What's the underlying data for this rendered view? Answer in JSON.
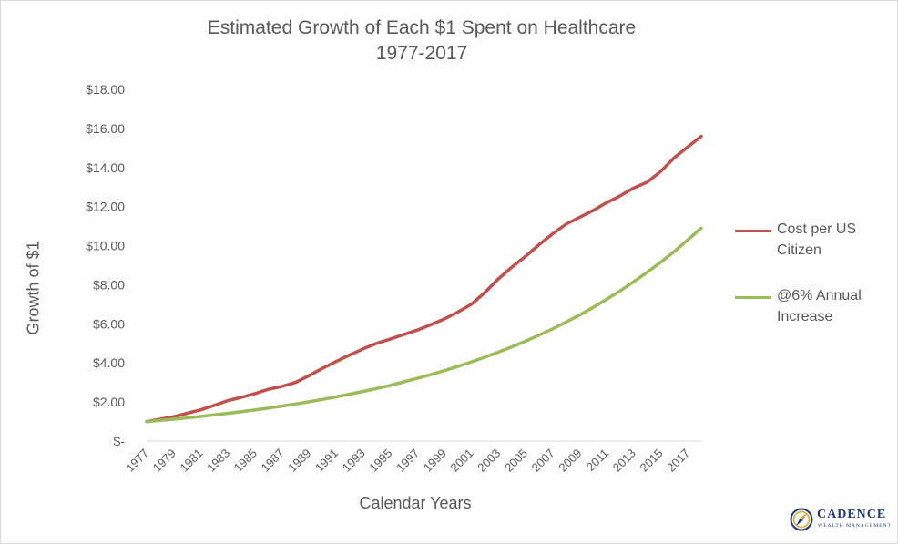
{
  "chart_data": {
    "type": "line",
    "title": "Estimated Growth of Each $1 Spent on Healthcare",
    "subtitle": "1977-2017",
    "xlabel": "Calendar Years",
    "ylabel": "Growth of $1",
    "ylim": [
      0,
      18
    ],
    "ytick_values": [
      0,
      2,
      4,
      6,
      8,
      10,
      12,
      14,
      16,
      18
    ],
    "ytick_labels": [
      "$-",
      "$2.00",
      "$4.00",
      "$6.00",
      "$8.00",
      "$10.00",
      "$12.00",
      "$14.00",
      "$16.00",
      "$18.00"
    ],
    "xtick_labels": [
      "1977",
      "1979",
      "1981",
      "1983",
      "1985",
      "1987",
      "1989",
      "1991",
      "1993",
      "1995",
      "1997",
      "1999",
      "2001",
      "2003",
      "2005",
      "2007",
      "2009",
      "2011",
      "2013",
      "2015",
      "2017"
    ],
    "grid": false,
    "legend_position": "right",
    "x": [
      1977,
      1978,
      1979,
      1980,
      1981,
      1982,
      1983,
      1984,
      1985,
      1986,
      1987,
      1988,
      1989,
      1990,
      1991,
      1992,
      1993,
      1994,
      1995,
      1996,
      1997,
      1998,
      1999,
      2000,
      2001,
      2002,
      2003,
      2004,
      2005,
      2006,
      2007,
      2008,
      2009,
      2010,
      2011,
      2012,
      2013,
      2014,
      2015,
      2016,
      2017,
      2018
    ],
    "series": [
      {
        "name": "Cost per US Citizen",
        "color": "#c0504d",
        "values": [
          1.0,
          1.12,
          1.25,
          1.42,
          1.6,
          1.83,
          2.07,
          2.24,
          2.43,
          2.65,
          2.8,
          3.0,
          3.35,
          3.72,
          4.07,
          4.4,
          4.72,
          5.0,
          5.22,
          5.45,
          5.68,
          5.95,
          6.25,
          6.6,
          7.0,
          7.6,
          8.3,
          8.9,
          9.45,
          10.05,
          10.6,
          11.1,
          11.45,
          11.8,
          12.2,
          12.55,
          12.95,
          13.25,
          13.8,
          14.5,
          15.05,
          15.6
        ]
      },
      {
        "name": "@6% Annual Increase",
        "color": "#9bbb59",
        "values": [
          1.0,
          1.06,
          1.12,
          1.19,
          1.26,
          1.34,
          1.42,
          1.5,
          1.59,
          1.69,
          1.79,
          1.9,
          2.01,
          2.13,
          2.26,
          2.4,
          2.54,
          2.69,
          2.85,
          3.03,
          3.21,
          3.4,
          3.6,
          3.82,
          4.05,
          4.29,
          4.55,
          4.82,
          5.11,
          5.42,
          5.74,
          6.09,
          6.45,
          6.84,
          7.25,
          7.69,
          8.15,
          8.64,
          9.15,
          9.7,
          10.29,
          10.9
        ]
      }
    ]
  },
  "logo": {
    "name": "CADENCE",
    "subtitle": "WEALTH MANAGEMENT"
  }
}
